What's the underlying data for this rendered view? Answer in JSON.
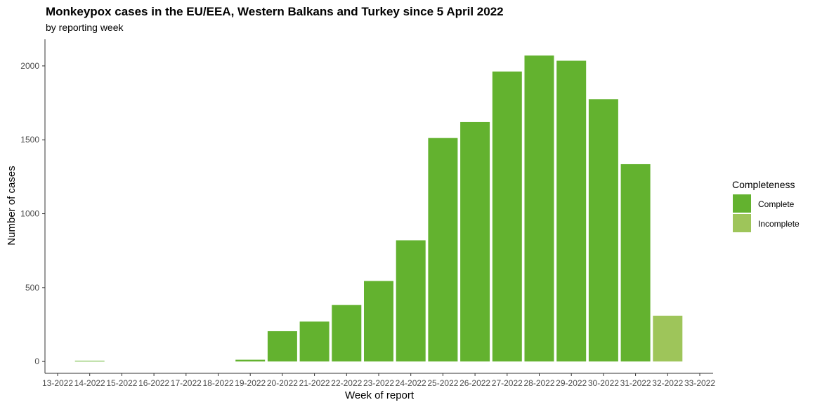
{
  "chart_data": {
    "type": "bar",
    "title": "Monkeypox cases in the EU/EEA, Western Balkans and Turkey since 5 April 2022",
    "subtitle": "by reporting week",
    "xlabel": "Week of report",
    "ylabel": "Number of cases",
    "ylim": [
      -80,
      2180
    ],
    "yticks": [
      0,
      500,
      1000,
      1500,
      2000
    ],
    "categories": [
      "13-2022",
      "14-2022",
      "15-2022",
      "16-2022",
      "17-2022",
      "18-2022",
      "19-2022",
      "20-2022",
      "21-2022",
      "22-2022",
      "23-2022",
      "24-2022",
      "25-2022",
      "26-2022",
      "27-2022",
      "28-2022",
      "29-2022",
      "30-2022",
      "31-2022",
      "32-2022",
      "33-2022"
    ],
    "series": [
      {
        "name": "Complete",
        "color": "#63b22f",
        "values": [
          0,
          1,
          0,
          0,
          0,
          0,
          12,
          205,
          270,
          382,
          545,
          820,
          1512,
          1620,
          1962,
          2070,
          2035,
          1775,
          1335,
          0,
          0
        ]
      },
      {
        "name": "Incomplete",
        "color": "#9ec55a",
        "values": [
          0,
          0,
          0,
          0,
          0,
          0,
          0,
          0,
          0,
          0,
          0,
          0,
          0,
          0,
          0,
          0,
          0,
          0,
          0,
          310,
          0
        ]
      }
    ],
    "grid": false,
    "legend": {
      "title": "Completeness",
      "position": "right"
    }
  }
}
